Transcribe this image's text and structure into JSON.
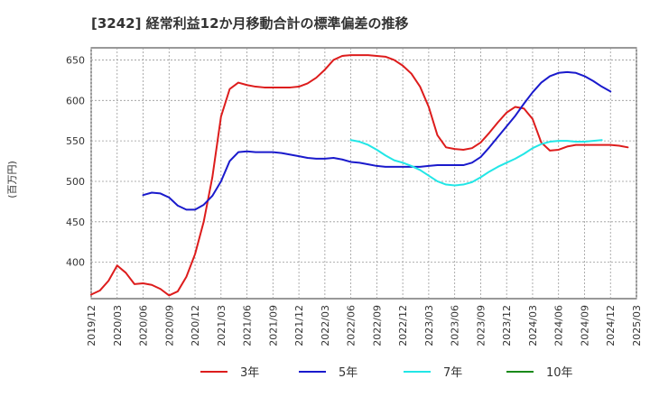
{
  "chart_data": {
    "type": "line",
    "title": "[3242]  経常利益12か月移動合計の標準偏差の推移",
    "ylabel": "(百万円)",
    "xlabel": "",
    "ylim": [
      355,
      665
    ],
    "yticks": [
      400,
      450,
      500,
      550,
      600,
      650
    ],
    "x_ticks": [
      "2019/12",
      "2020/03",
      "2020/06",
      "2020/09",
      "2020/12",
      "2021/03",
      "2021/06",
      "2021/09",
      "2021/12",
      "2022/03",
      "2022/06",
      "2022/09",
      "2022/12",
      "2023/03",
      "2023/06",
      "2023/09",
      "2023/12",
      "2024/03",
      "2024/06",
      "2024/09",
      "2024/12",
      "2025/03"
    ],
    "x_start": "2019/12",
    "grid": true,
    "legend_position": "bottom",
    "series": [
      {
        "name": "3年",
        "color": "#dd1c1c",
        "start_index": 0,
        "values": [
          360,
          365,
          377,
          396,
          387,
          373,
          374,
          372,
          367,
          359,
          364,
          382,
          410,
          450,
          505,
          580,
          614,
          622,
          619,
          617,
          616,
          616,
          616,
          616,
          617,
          621,
          628,
          638,
          650,
          655,
          656,
          656,
          656,
          655,
          654,
          650,
          643,
          633,
          617,
          592,
          557,
          542,
          540,
          539,
          541,
          548,
          560,
          573,
          585,
          592,
          590,
          577,
          548,
          538,
          539,
          543,
          545,
          545,
          545,
          545,
          545,
          544,
          542
        ]
      },
      {
        "name": "5年",
        "color": "#1a1acc",
        "start_index": 6,
        "values": [
          483,
          486,
          485,
          480,
          470,
          465,
          465,
          471,
          482,
          500,
          525,
          536,
          537,
          536,
          536,
          536,
          535,
          533,
          531,
          529,
          528,
          528,
          529,
          527,
          524,
          523,
          521,
          519,
          518,
          518,
          518,
          518,
          518,
          519,
          520,
          520,
          520,
          520,
          523,
          530,
          542,
          555,
          568,
          581,
          596,
          610,
          622,
          630,
          634,
          635,
          634,
          630,
          624,
          617,
          611
        ]
      },
      {
        "name": "7年",
        "color": "#22e6e6",
        "start_index": 30,
        "values": [
          551,
          549,
          545,
          539,
          532,
          526,
          523,
          519,
          514,
          507,
          500,
          496,
          495,
          496,
          499,
          505,
          512,
          518,
          523,
          528,
          534,
          541,
          546,
          549,
          550,
          550,
          549,
          549,
          550,
          551
        ]
      },
      {
        "name": "10年",
        "color": "#1a8a1a",
        "start_index": 0,
        "values": []
      }
    ]
  }
}
